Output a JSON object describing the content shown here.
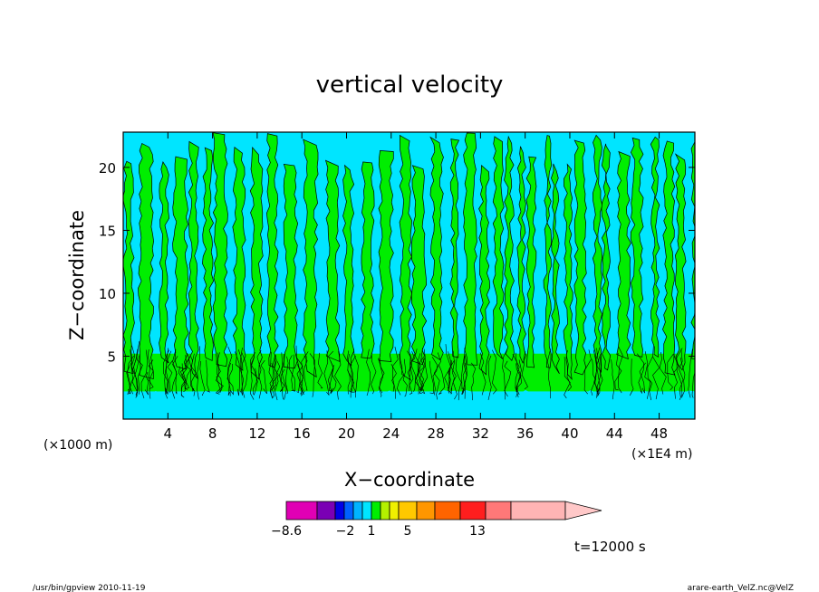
{
  "chart_data": {
    "type": "heatmap",
    "title": "vertical velocity",
    "xlabel": "X−coordinate",
    "ylabel": "Z−coordinate",
    "x_unit_left": "(×1000 m)",
    "x_unit_right": "(×1E4 m)",
    "x_ticks": [
      "4",
      "8",
      "12",
      "16",
      "20",
      "24",
      "28",
      "32",
      "36",
      "40",
      "44",
      "48"
    ],
    "x_tick_values": [
      4,
      8,
      12,
      16,
      20,
      24,
      28,
      32,
      36,
      40,
      44,
      48
    ],
    "y_ticks": [
      "5",
      "10",
      "15",
      "20"
    ],
    "y_tick_values": [
      5,
      10,
      15,
      20
    ],
    "xlim": [
      0,
      51.2
    ],
    "ylim": [
      0,
      22.8
    ],
    "colors": {
      "negative_field": "#00e5ff",
      "positive_field": "#00ee00",
      "contour_line": "#000000"
    },
    "colorbar": {
      "labels": [
        "−8.6",
        "−2",
        "1",
        "5",
        "13"
      ],
      "colors": [
        "#e000b4",
        "#7a00b4",
        "#0000e6",
        "#0060ff",
        "#00b4ff",
        "#00e5ff",
        "#00ee00",
        "#b4f000",
        "#f0f000",
        "#ffc800",
        "#ff9600",
        "#ff6400",
        "#ff1e1e",
        "#ff7878",
        "#ffb4b4",
        "#ffc8c8"
      ]
    },
    "time_label": "t=12000 s"
  },
  "footer": {
    "left": "/usr/bin/gpview   2010-11-19",
    "right": "arare-earth_VelZ.nc@VelZ"
  }
}
